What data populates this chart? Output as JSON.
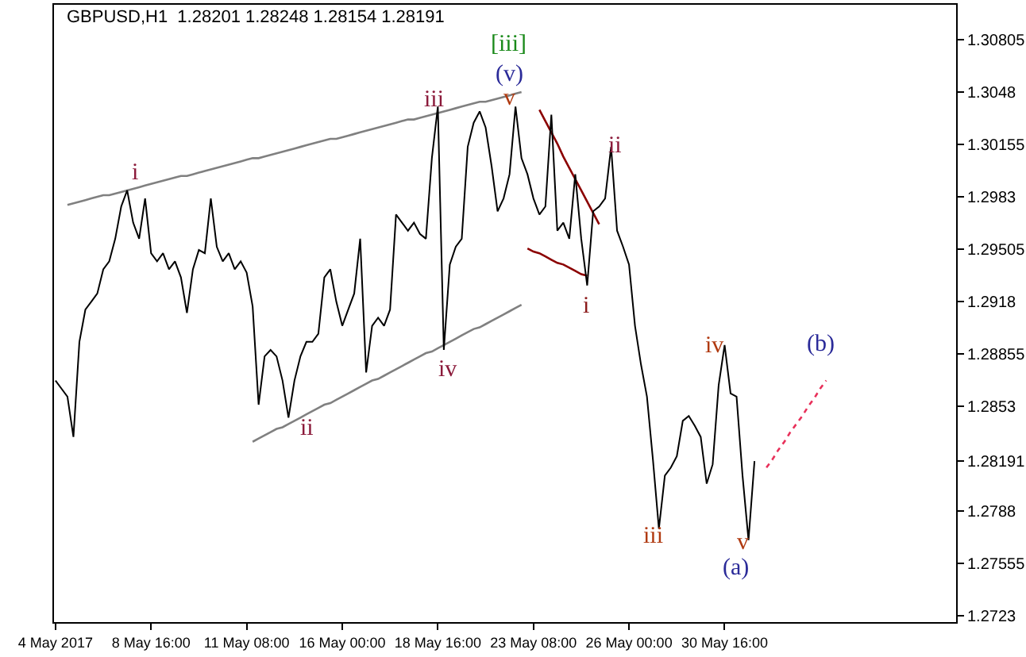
{
  "chart_data": {
    "type": "line",
    "title": "GBPUSD,H1  1.28201 1.28248 1.28154 1.28191",
    "categories": [
      "4 May 2017",
      null,
      null,
      null,
      null,
      null,
      null,
      null,
      null,
      null,
      null,
      null,
      null,
      null,
      null,
      null,
      "8 May 16:00",
      null,
      null,
      null,
      null,
      null,
      null,
      null,
      null,
      null,
      null,
      null,
      null,
      null,
      null,
      null,
      "11 May 08:00",
      null,
      null,
      null,
      null,
      null,
      null,
      null,
      null,
      null,
      null,
      null,
      null,
      null,
      null,
      null,
      "16 May 00:00",
      null,
      null,
      null,
      null,
      null,
      null,
      null,
      null,
      null,
      null,
      null,
      null,
      null,
      null,
      null,
      "18 May 16:00",
      null,
      null,
      null,
      null,
      null,
      null,
      null,
      null,
      null,
      null,
      null,
      null,
      null,
      null,
      null,
      "23 May 08:00",
      null,
      null,
      null,
      null,
      null,
      null,
      null,
      null,
      null,
      null,
      null,
      null,
      null,
      null,
      null,
      "26 May 00:00",
      null,
      null,
      null,
      null,
      null,
      null,
      null,
      null,
      null,
      null,
      null,
      null,
      null,
      null,
      null,
      "30 May 16:00",
      null,
      null,
      null,
      null,
      null,
      null,
      null,
      null,
      null,
      null,
      null,
      null,
      null,
      null,
      null,
      null,
      null,
      null,
      null,
      null,
      null,
      null,
      null,
      null,
      null,
      null,
      null,
      null,
      null,
      null,
      null,
      null,
      null,
      null,
      null,
      null,
      null,
      null
    ],
    "series": [
      {
        "color": "#000000",
        "values": [
          1.2869,
          1.2864,
          1.2859,
          1.2834,
          1.2893,
          1.2913,
          1.2918,
          1.2923,
          1.2938,
          1.2943,
          1.2957,
          1.2977,
          1.2987,
          1.2967,
          1.2957,
          1.2982,
          1.2948,
          1.2943,
          1.2948,
          1.2938,
          1.2943,
          1.2933,
          1.2911,
          1.2938,
          1.295,
          1.2948,
          1.2982,
          1.2952,
          1.2943,
          1.2948,
          1.2938,
          1.2943,
          1.2936,
          1.2915,
          1.2854,
          1.2884,
          1.2888,
          1.2884,
          1.2869,
          1.2846,
          1.2869,
          1.2884,
          1.2893,
          1.2893,
          1.2898,
          1.2933,
          1.2938,
          1.2918,
          1.2903,
          1.2913,
          1.2923,
          1.2957,
          1.2874,
          1.2903,
          1.2908,
          1.2903,
          1.2913,
          1.2972,
          1.2967,
          1.2962,
          1.2967,
          1.296,
          1.2957,
          1.3007,
          1.3039,
          1.2888,
          1.2941,
          1.2952,
          1.2957,
          1.3014,
          1.3029,
          1.3036,
          1.3026,
          1.3002,
          1.2974,
          1.2982,
          1.2997,
          1.3039,
          1.3007,
          1.2997,
          1.2982,
          1.2972,
          1.2977,
          1.3034,
          1.2962,
          1.2967,
          1.2957,
          1.2997,
          1.2957,
          1.2928,
          1.2974,
          1.2977,
          1.2982,
          1.3014,
          1.2962,
          1.2952,
          1.2941,
          1.2903,
          1.2879,
          1.2859,
          1.282,
          1.2777,
          1.281,
          1.2815,
          1.2822,
          1.2844,
          1.2847,
          1.2841,
          1.2834,
          1.2805,
          1.2817,
          1.2866,
          1.2891,
          1.2861,
          1.2859,
          1.281,
          1.277,
          1.2819,
          null,
          null,
          null,
          null,
          null,
          null,
          null,
          null,
          null,
          null,
          null,
          null,
          null,
          null,
          null,
          null,
          null,
          null,
          null,
          null,
          null,
          null,
          null,
          null,
          null,
          null,
          null,
          null,
          null,
          null,
          null,
          null,
          null
        ]
      },
      {
        "type": "line",
        "color": "#808080",
        "values": [
          null,
          null,
          1.2978,
          1.2979,
          1.298,
          1.2981,
          1.2982,
          1.2983,
          1.2984,
          1.2984,
          1.2985,
          1.2986,
          1.2987,
          1.2988,
          1.2989,
          1.299,
          1.2991,
          1.2992,
          1.2993,
          1.2994,
          1.2995,
          1.2996,
          1.2996,
          1.2997,
          1.2998,
          1.2999,
          1.3,
          1.3001,
          1.3002,
          1.3003,
          1.3004,
          1.3005,
          1.3006,
          1.3007,
          1.3007,
          1.3008,
          1.3009,
          1.301,
          1.3011,
          1.3012,
          1.3013,
          1.3014,
          1.3015,
          1.3016,
          1.3017,
          1.3018,
          1.3019,
          1.3019,
          1.302,
          1.3021,
          1.3022,
          1.3023,
          1.3024,
          1.3025,
          1.3026,
          1.3027,
          1.3028,
          1.3029,
          1.303,
          1.3031,
          1.3031,
          1.3032,
          1.3033,
          1.3034,
          1.3035,
          1.3036,
          1.3037,
          1.3038,
          1.3039,
          1.304,
          1.3041,
          1.3042,
          1.3042,
          1.3043,
          1.3044,
          1.3045,
          1.3046,
          1.3047,
          1.3048,
          null,
          null,
          null,
          null,
          null,
          null,
          null,
          null,
          null,
          null,
          null,
          null,
          null,
          null,
          null,
          null,
          null,
          null,
          null,
          null,
          null,
          null,
          null,
          null,
          null,
          null,
          null,
          null,
          null,
          null,
          null,
          null,
          null,
          null,
          null,
          null,
          null,
          null,
          null,
          null,
          null,
          null,
          null,
          null,
          null,
          null,
          null,
          null,
          null,
          null,
          null,
          null,
          null,
          null,
          null,
          null,
          null,
          null,
          null,
          null,
          null,
          null,
          null,
          null,
          null,
          null,
          null,
          null,
          null,
          null,
          null,
          null
        ]
      },
      {
        "type": "line",
        "color": "#808080",
        "values": [
          null,
          null,
          null,
          null,
          null,
          null,
          null,
          null,
          null,
          null,
          null,
          null,
          null,
          null,
          null,
          null,
          null,
          null,
          null,
          null,
          null,
          null,
          null,
          null,
          null,
          null,
          null,
          null,
          null,
          null,
          null,
          null,
          null,
          1.2831,
          1.2833,
          1.2835,
          1.2837,
          1.2839,
          1.284,
          1.2842,
          1.2844,
          1.2846,
          1.2848,
          1.285,
          1.2852,
          1.2854,
          1.2855,
          1.2857,
          1.2859,
          1.2861,
          1.2863,
          1.2865,
          1.2867,
          1.2869,
          1.287,
          1.2872,
          1.2874,
          1.2876,
          1.2878,
          1.288,
          1.2882,
          1.2884,
          1.2886,
          1.2887,
          1.2889,
          1.2891,
          1.2893,
          1.2895,
          1.2897,
          1.2899,
          1.2901,
          1.2902,
          1.2904,
          1.2906,
          1.2908,
          1.291,
          1.2912,
          1.2914,
          1.2916,
          null,
          null,
          null,
          null,
          null,
          null,
          null,
          null,
          null,
          null,
          null,
          null,
          null,
          null,
          null,
          null,
          null,
          null,
          null,
          null,
          null,
          null,
          null,
          null,
          null,
          null,
          null,
          null,
          null,
          null,
          null,
          null,
          null,
          null,
          null,
          null,
          null,
          null,
          null,
          null,
          null,
          null,
          null,
          null,
          null,
          null,
          null,
          null,
          null,
          null,
          null,
          null,
          null,
          null,
          null,
          null,
          null,
          null,
          null,
          null,
          null,
          null,
          null,
          null,
          null,
          null,
          null,
          null,
          null,
          null,
          null,
          null
        ]
      },
      {
        "type": "line",
        "color": "#8b0000",
        "values": [
          null,
          null,
          null,
          null,
          null,
          null,
          null,
          null,
          null,
          null,
          null,
          null,
          null,
          null,
          null,
          null,
          null,
          null,
          null,
          null,
          null,
          null,
          null,
          null,
          null,
          null,
          null,
          null,
          null,
          null,
          null,
          null,
          null,
          null,
          null,
          null,
          null,
          null,
          null,
          null,
          null,
          null,
          null,
          null,
          null,
          null,
          null,
          null,
          null,
          null,
          null,
          null,
          null,
          null,
          null,
          null,
          null,
          null,
          null,
          null,
          null,
          null,
          null,
          null,
          null,
          null,
          null,
          null,
          null,
          null,
          null,
          null,
          null,
          null,
          null,
          null,
          null,
          null,
          null,
          null,
          null,
          1.3037,
          1.303,
          1.3023,
          1.3016,
          1.3008,
          1.3001,
          1.2994,
          1.2987,
          1.298,
          1.2973,
          1.2966,
          null,
          null,
          null,
          null,
          null,
          null,
          null,
          null,
          null,
          null,
          null,
          null,
          null,
          null,
          null,
          null,
          null,
          null,
          null,
          null,
          null,
          null,
          null,
          null,
          null,
          null,
          null,
          null,
          null,
          null,
          null,
          null,
          null,
          null,
          null,
          null,
          null,
          null,
          null,
          null,
          null,
          null,
          null,
          null,
          null,
          null,
          null,
          null,
          null,
          null,
          null,
          null,
          null,
          null,
          null,
          null,
          null,
          null,
          null
        ]
      },
      {
        "type": "line",
        "color": "#8b0000",
        "values": [
          null,
          null,
          null,
          null,
          null,
          null,
          null,
          null,
          null,
          null,
          null,
          null,
          null,
          null,
          null,
          null,
          null,
          null,
          null,
          null,
          null,
          null,
          null,
          null,
          null,
          null,
          null,
          null,
          null,
          null,
          null,
          null,
          null,
          null,
          null,
          null,
          null,
          null,
          null,
          null,
          null,
          null,
          null,
          null,
          null,
          null,
          null,
          null,
          null,
          null,
          null,
          null,
          null,
          null,
          null,
          null,
          null,
          null,
          null,
          null,
          null,
          null,
          null,
          null,
          null,
          null,
          null,
          null,
          null,
          null,
          null,
          null,
          null,
          null,
          null,
          null,
          null,
          null,
          null,
          1.2951,
          1.2949,
          1.2948,
          1.2946,
          1.2944,
          1.2942,
          1.2941,
          1.2939,
          1.2937,
          1.2935,
          1.2934,
          null,
          null,
          null,
          null,
          null,
          null,
          null,
          null,
          null,
          null,
          null,
          null,
          null,
          null,
          null,
          null,
          null,
          null,
          null,
          null,
          null,
          null,
          null,
          null,
          null,
          null,
          null,
          null,
          null,
          null,
          null,
          null,
          null,
          null,
          null,
          null,
          null,
          null,
          null,
          null,
          null,
          null,
          null,
          null,
          null,
          null,
          null,
          null,
          null,
          null,
          null,
          null,
          null,
          null,
          null,
          null,
          null,
          null,
          null,
          null,
          null
        ]
      },
      {
        "type": "line",
        "color": "#e8305a",
        "line_style": "dotted",
        "values": [
          null,
          null,
          null,
          null,
          null,
          null,
          null,
          null,
          null,
          null,
          null,
          null,
          null,
          null,
          null,
          null,
          null,
          null,
          null,
          null,
          null,
          null,
          null,
          null,
          null,
          null,
          null,
          null,
          null,
          null,
          null,
          null,
          null,
          null,
          null,
          null,
          null,
          null,
          null,
          null,
          null,
          null,
          null,
          null,
          null,
          null,
          null,
          null,
          null,
          null,
          null,
          null,
          null,
          null,
          null,
          null,
          null,
          null,
          null,
          null,
          null,
          null,
          null,
          null,
          null,
          null,
          null,
          null,
          null,
          null,
          null,
          null,
          null,
          null,
          null,
          null,
          null,
          null,
          null,
          null,
          null,
          null,
          null,
          null,
          null,
          null,
          null,
          null,
          null,
          null,
          null,
          null,
          null,
          null,
          null,
          null,
          null,
          null,
          null,
          null,
          null,
          null,
          null,
          null,
          null,
          null,
          null,
          null,
          null,
          null,
          null,
          null,
          null,
          null,
          null,
          null,
          null,
          null,
          null,
          1.2815,
          1.282,
          1.2826,
          1.2831,
          1.2837,
          1.2842,
          1.2847,
          1.2853,
          1.2858,
          1.2864,
          1.2869,
          null,
          null,
          null,
          null,
          null,
          null,
          null,
          null,
          null,
          null,
          null,
          null,
          null,
          null,
          null,
          null,
          null,
          null,
          null,
          null,
          null
        ]
      }
    ],
    "annotations": [
      "i",
      "ii",
      "iii",
      "iv",
      "v",
      "(v)",
      "[iii]",
      "i",
      "ii",
      "iii",
      "iv",
      "v",
      "(a)",
      "(b)"
    ],
    "ylim": [
      1.27191,
      1.31022
    ],
    "yticks": [
      1.2723,
      1.27555,
      1.2788,
      1.28191,
      1.2853,
      1.28855,
      1.2918,
      1.29505,
      1.2983,
      1.30155,
      1.3048,
      1.30805
    ],
    "grid": false,
    "marker": "none",
    "line_style": "solid"
  }
}
